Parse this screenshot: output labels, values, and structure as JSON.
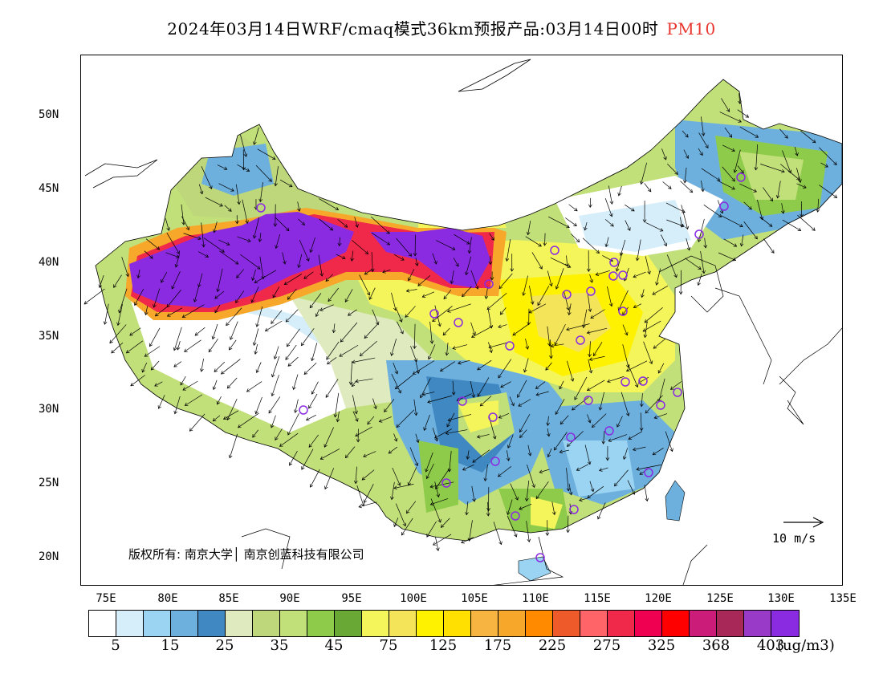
{
  "title": {
    "main": "2024年03月14日WRF/cmaq模式36km预报产品:03月14日00时",
    "pollutant": "PM10"
  },
  "axes": {
    "lat_labels": [
      "50N",
      "45N",
      "40N",
      "35N",
      "30N",
      "25N",
      "20N"
    ],
    "lon_labels": [
      "75E",
      "80E",
      "85E",
      "90E",
      "95E",
      "100E",
      "105E",
      "110E",
      "115E",
      "120E",
      "125E",
      "130E",
      "135E"
    ]
  },
  "copyright": "版权所有: 南京大学│ 南京创蓝科技有限公司",
  "wind_scale": "10 m/s",
  "colorbar": {
    "colors": [
      "#ffffff",
      "#d6eefa",
      "#9bd4f2",
      "#6db0de",
      "#3f88c2",
      "#dfeabf",
      "#bdd77a",
      "#c2e07a",
      "#8fcb4a",
      "#6aa836",
      "#f3f55a",
      "#f3e45a",
      "#fff200",
      "#ffe000",
      "#f7b440",
      "#f7a82a",
      "#ff8a00",
      "#ef5a2a",
      "#ff6469",
      "#f0284a",
      "#f00050",
      "#ff0000",
      "#cc1c7a",
      "#a82858",
      "#9a3ac8",
      "#8a2be2"
    ],
    "labels": [
      "5",
      "15",
      "25",
      "35",
      "45",
      "75",
      "125",
      "175",
      "225",
      "275",
      "325",
      "368",
      "403"
    ],
    "unit": "(ug/m3)"
  },
  "map": {
    "colors": {
      "purple": "#8a2be2",
      "red": "#f0284a",
      "orange": "#f7a82a",
      "yellow": "#fff200",
      "yellow_light": "#f3f55a",
      "green_light": "#c2e07a",
      "green": "#8fcb4a",
      "green_dark": "#6aa836",
      "blue_light": "#9bd4f2",
      "blue": "#6db0de",
      "blue_dark": "#3f88c2",
      "pale": "#d6eefa",
      "city_marker": "#8a2be2"
    }
  }
}
